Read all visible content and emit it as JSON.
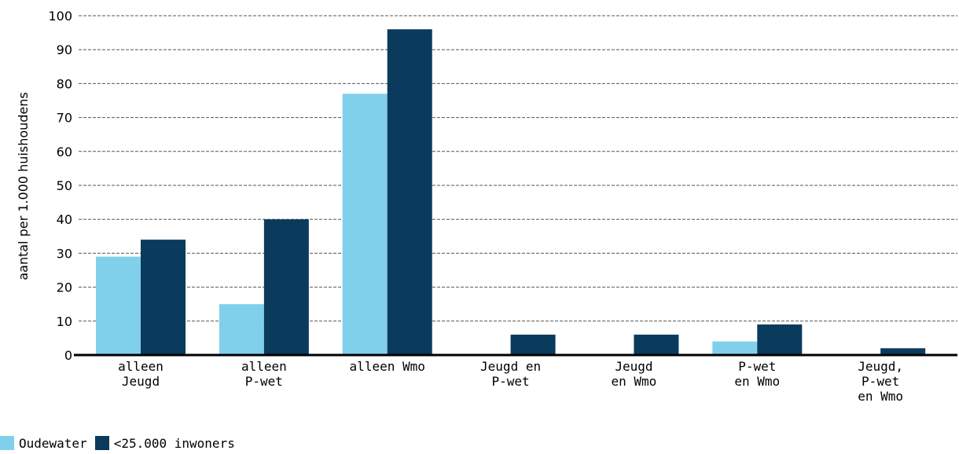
{
  "chart_data": {
    "type": "bar",
    "ylabel": "aantal per 1.000 huishoudens",
    "ylim": [
      0,
      100
    ],
    "yticks": [
      0,
      10,
      20,
      30,
      40,
      50,
      60,
      70,
      80,
      90,
      100
    ],
    "grid": true,
    "legend_position": "bottom-left",
    "categories": [
      [
        "alleen",
        "Jeugd"
      ],
      [
        "alleen",
        "P-wet"
      ],
      [
        "alleen Wmo"
      ],
      [
        "Jeugd en",
        "P-wet"
      ],
      [
        "Jeugd",
        "en Wmo"
      ],
      [
        "P-wet",
        "en Wmo"
      ],
      [
        "Jeugd,",
        "P-wet",
        "en Wmo"
      ]
    ],
    "series": [
      {
        "name": "Oudewater",
        "color": "#80d0ec",
        "values": [
          29,
          15,
          77,
          0,
          0,
          4,
          0
        ]
      },
      {
        "name": "<25.000 inwoners",
        "color": "#0a3a5c",
        "values": [
          34,
          40,
          96,
          6,
          6,
          9,
          2
        ]
      }
    ]
  }
}
